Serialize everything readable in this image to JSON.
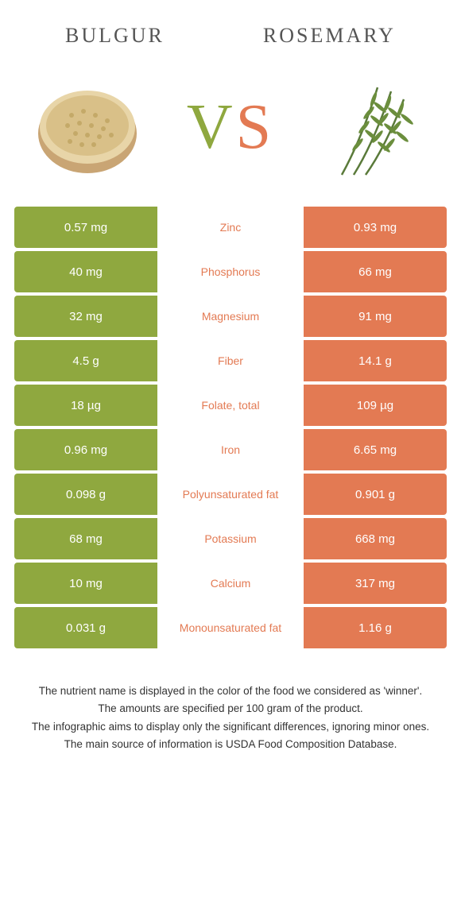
{
  "colors": {
    "left": "#8fa83f",
    "right": "#e37a53",
    "background": "#ffffff",
    "text": "#333333"
  },
  "foods": {
    "left": {
      "name": "BULGUR"
    },
    "right": {
      "name": "ROSEMARY"
    }
  },
  "vs_label": {
    "v": "V",
    "s": "S"
  },
  "rows": [
    {
      "nutrient": "Zinc",
      "left": "0.57 mg",
      "right": "0.93 mg",
      "winner": "right"
    },
    {
      "nutrient": "Phosphorus",
      "left": "40 mg",
      "right": "66 mg",
      "winner": "right"
    },
    {
      "nutrient": "Magnesium",
      "left": "32 mg",
      "right": "91 mg",
      "winner": "right"
    },
    {
      "nutrient": "Fiber",
      "left": "4.5 g",
      "right": "14.1 g",
      "winner": "right"
    },
    {
      "nutrient": "Folate, total",
      "left": "18 µg",
      "right": "109 µg",
      "winner": "right"
    },
    {
      "nutrient": "Iron",
      "left": "0.96 mg",
      "right": "6.65 mg",
      "winner": "right"
    },
    {
      "nutrient": "Polyunsaturated fat",
      "left": "0.098 g",
      "right": "0.901 g",
      "winner": "right"
    },
    {
      "nutrient": "Potassium",
      "left": "68 mg",
      "right": "668 mg",
      "winner": "right"
    },
    {
      "nutrient": "Calcium",
      "left": "10 mg",
      "right": "317 mg",
      "winner": "right"
    },
    {
      "nutrient": "Monounsaturated fat",
      "left": "0.031 g",
      "right": "1.16 g",
      "winner": "right"
    }
  ],
  "footnote": [
    "The nutrient name is displayed in the color of the food we considered as 'winner'.",
    "The amounts are specified per 100 gram of the product.",
    "The infographic aims to display only the significant differences, ignoring minor ones.",
    "The main source of information is USDA Food Composition Database."
  ]
}
